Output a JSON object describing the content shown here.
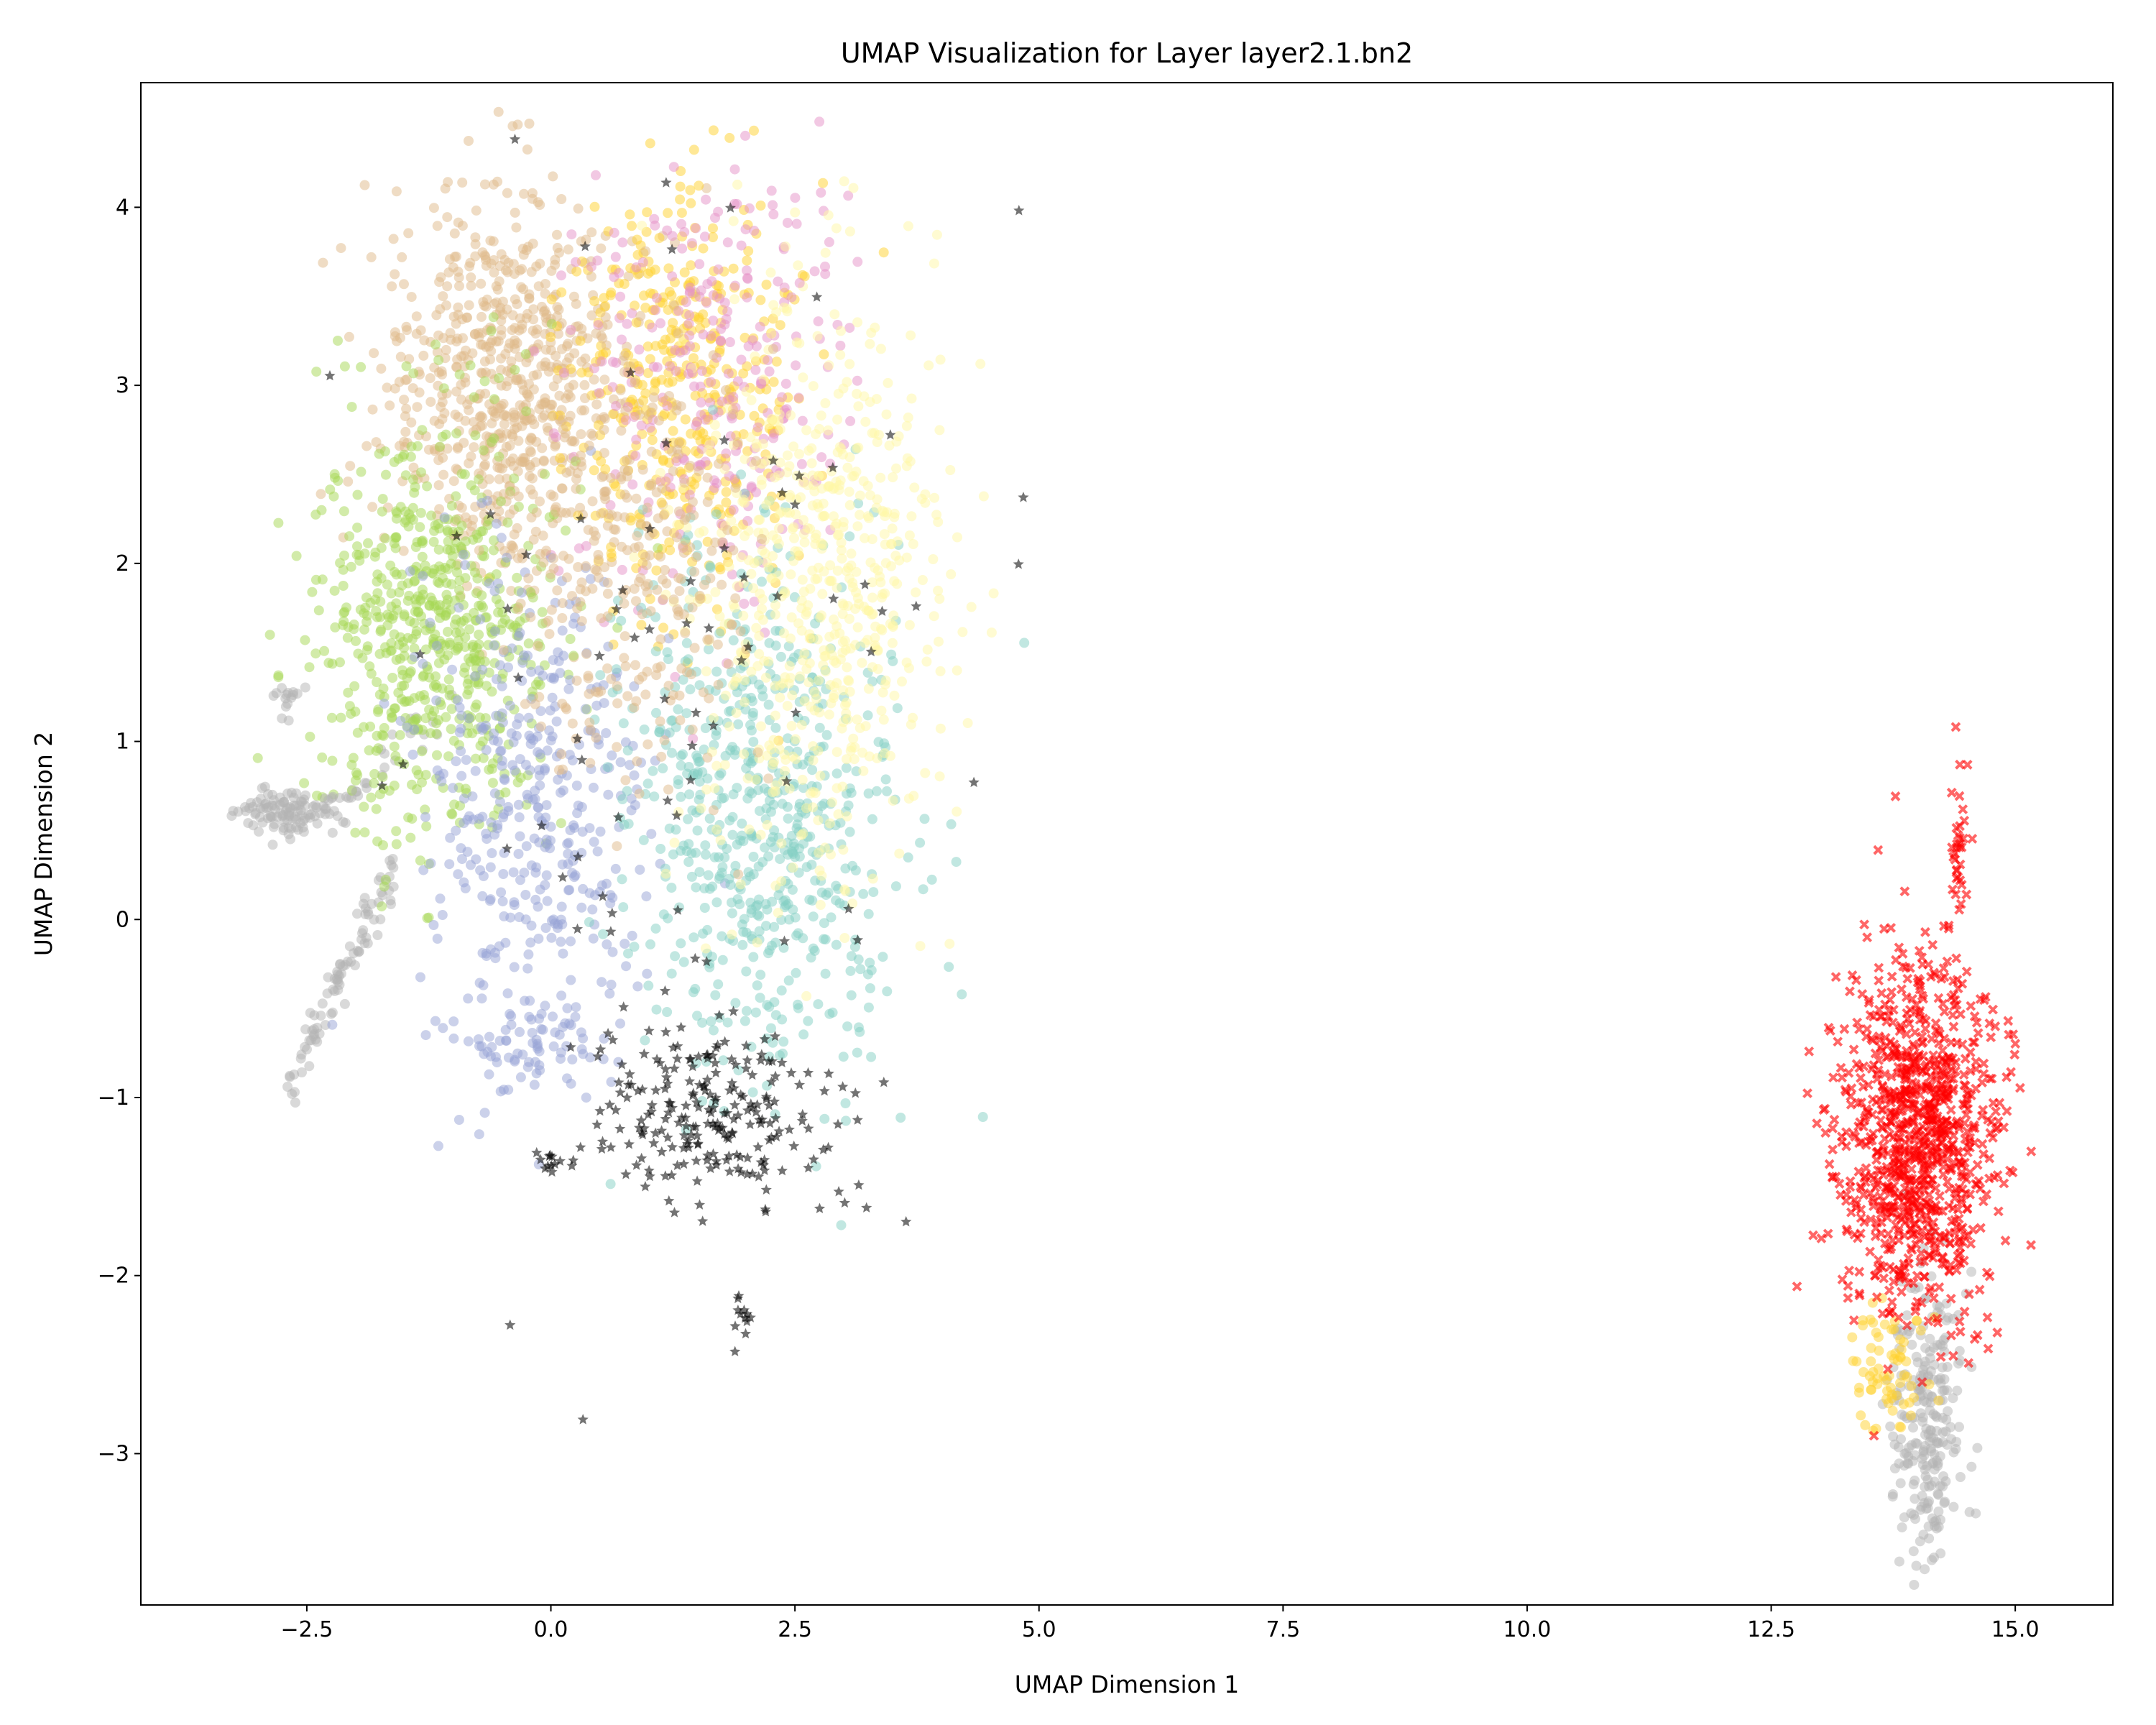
{
  "chart_data": {
    "type": "scatter",
    "title": "UMAP Visualization for Layer layer2.1.bn2",
    "xlabel": "UMAP Dimension 1",
    "ylabel": "UMAP Dimension 2",
    "xlim": [
      -4.2,
      16.0
    ],
    "ylim": [
      -3.85,
      4.7
    ],
    "xticks": [
      -2.5,
      0.0,
      2.5,
      5.0,
      7.5,
      10.0,
      12.5,
      15.0
    ],
    "xtick_labels": [
      "−2.5",
      "0.0",
      "2.5",
      "5.0",
      "7.5",
      "10.0",
      "12.5",
      "15.0"
    ],
    "yticks": [
      -3,
      -2,
      -1,
      0,
      1,
      2,
      3,
      4
    ],
    "ytick_labels": [
      "−3",
      "−2",
      "−1",
      "0",
      "1",
      "2",
      "3",
      "4"
    ],
    "grid": false,
    "legend": null,
    "colors": {
      "tan": "#dfb98a",
      "yellow": "#ffd22e",
      "pink": "#e591c8",
      "periwinkle": "#97a4d6",
      "light_green": "#a6d854",
      "teal": "#84cfc3",
      "pale_yellow": "#fff7a6",
      "gray": "#b3b3b3",
      "black": "#000000",
      "red": "#ff0000"
    },
    "clusters": [
      {
        "color": "tan",
        "marker": "circle",
        "cx": -0.5,
        "cy": 3.0,
        "sx": 0.55,
        "sy": 0.55,
        "n": 650
      },
      {
        "color": "yellow",
        "marker": "circle",
        "cx": 1.3,
        "cy": 3.0,
        "sx": 0.6,
        "sy": 0.6,
        "n": 420
      },
      {
        "color": "pink",
        "marker": "circle",
        "cx": 1.7,
        "cy": 2.9,
        "sx": 0.7,
        "sy": 0.6,
        "n": 230
      },
      {
        "color": "light_green",
        "marker": "circle",
        "cx": -1.2,
        "cy": 1.6,
        "sx": 0.6,
        "sy": 0.6,
        "n": 650
      },
      {
        "color": "periwinkle",
        "marker": "circle",
        "cx": -0.2,
        "cy": 0.6,
        "sx": 0.6,
        "sy": 0.7,
        "n": 400
      },
      {
        "color": "teal",
        "marker": "circle",
        "cx": 2.2,
        "cy": 0.6,
        "sx": 0.7,
        "sy": 0.75,
        "n": 620
      },
      {
        "color": "pale_yellow",
        "marker": "circle",
        "cx": 2.7,
        "cy": 1.9,
        "sx": 0.65,
        "sy": 0.8,
        "n": 620
      },
      {
        "color": "tan",
        "marker": "circle",
        "cx": 0.8,
        "cy": 2.0,
        "sx": 0.6,
        "sy": 0.6,
        "n": 300
      },
      {
        "color": "black",
        "marker": "star",
        "cx": 1.6,
        "cy": -1.1,
        "sx": 0.6,
        "sy": 0.25,
        "n": 230
      },
      {
        "color": "black",
        "marker": "star",
        "cx": 2.0,
        "cy": -2.2,
        "sx": 0.06,
        "sy": 0.08,
        "n": 12
      },
      {
        "color": "black",
        "marker": "star",
        "cx": 0.0,
        "cy": -1.37,
        "sx": 0.05,
        "sy": 0.03,
        "n": 10
      },
      {
        "color": "black",
        "marker": "star",
        "cx": 1.3,
        "cy": 1.0,
        "sx": 1.4,
        "sy": 1.4,
        "n": 80
      },
      {
        "color": "gray",
        "marker": "circle",
        "cx": -2.7,
        "cy": 0.6,
        "sx": 0.28,
        "sy": 0.06,
        "n": 110
      },
      {
        "color": "gray",
        "marker": "circle",
        "cx": -2.7,
        "cy": 1.25,
        "sx": 0.08,
        "sy": 0.06,
        "n": 15
      },
      {
        "color": "red",
        "marker": "x",
        "cx": 14.0,
        "cy": -1.2,
        "sx": 0.4,
        "sy": 0.5,
        "n": 950
      },
      {
        "color": "red",
        "marker": "x",
        "cx": 14.42,
        "cy": 0.45,
        "sx": 0.04,
        "sy": 0.22,
        "n": 30
      },
      {
        "color": "gray",
        "marker": "circle",
        "cx": 14.1,
        "cy": -2.8,
        "sx": 0.18,
        "sy": 0.4,
        "n": 240
      },
      {
        "color": "yellow",
        "marker": "circle",
        "cx": 13.7,
        "cy": -2.5,
        "sx": 0.2,
        "sy": 0.22,
        "n": 70
      },
      {
        "color": "pink",
        "marker": "circle",
        "cx": 1.5,
        "cy": 3.6,
        "sx": 0.9,
        "sy": 0.35,
        "n": 60
      },
      {
        "color": "periwinkle",
        "marker": "circle",
        "cx": -0.2,
        "cy": -0.7,
        "sx": 0.3,
        "sy": 0.15,
        "n": 60
      }
    ],
    "strips": [
      {
        "color": "gray",
        "marker": "circle",
        "from": [
          -2.75,
          -1.0
        ],
        "to": [
          -1.6,
          0.3
        ],
        "spread": 0.06,
        "n": 90
      },
      {
        "color": "gray",
        "marker": "circle",
        "from": [
          -2.3,
          0.6
        ],
        "to": [
          -1.0,
          1.2
        ],
        "spread": 0.06,
        "n": 25
      }
    ]
  }
}
